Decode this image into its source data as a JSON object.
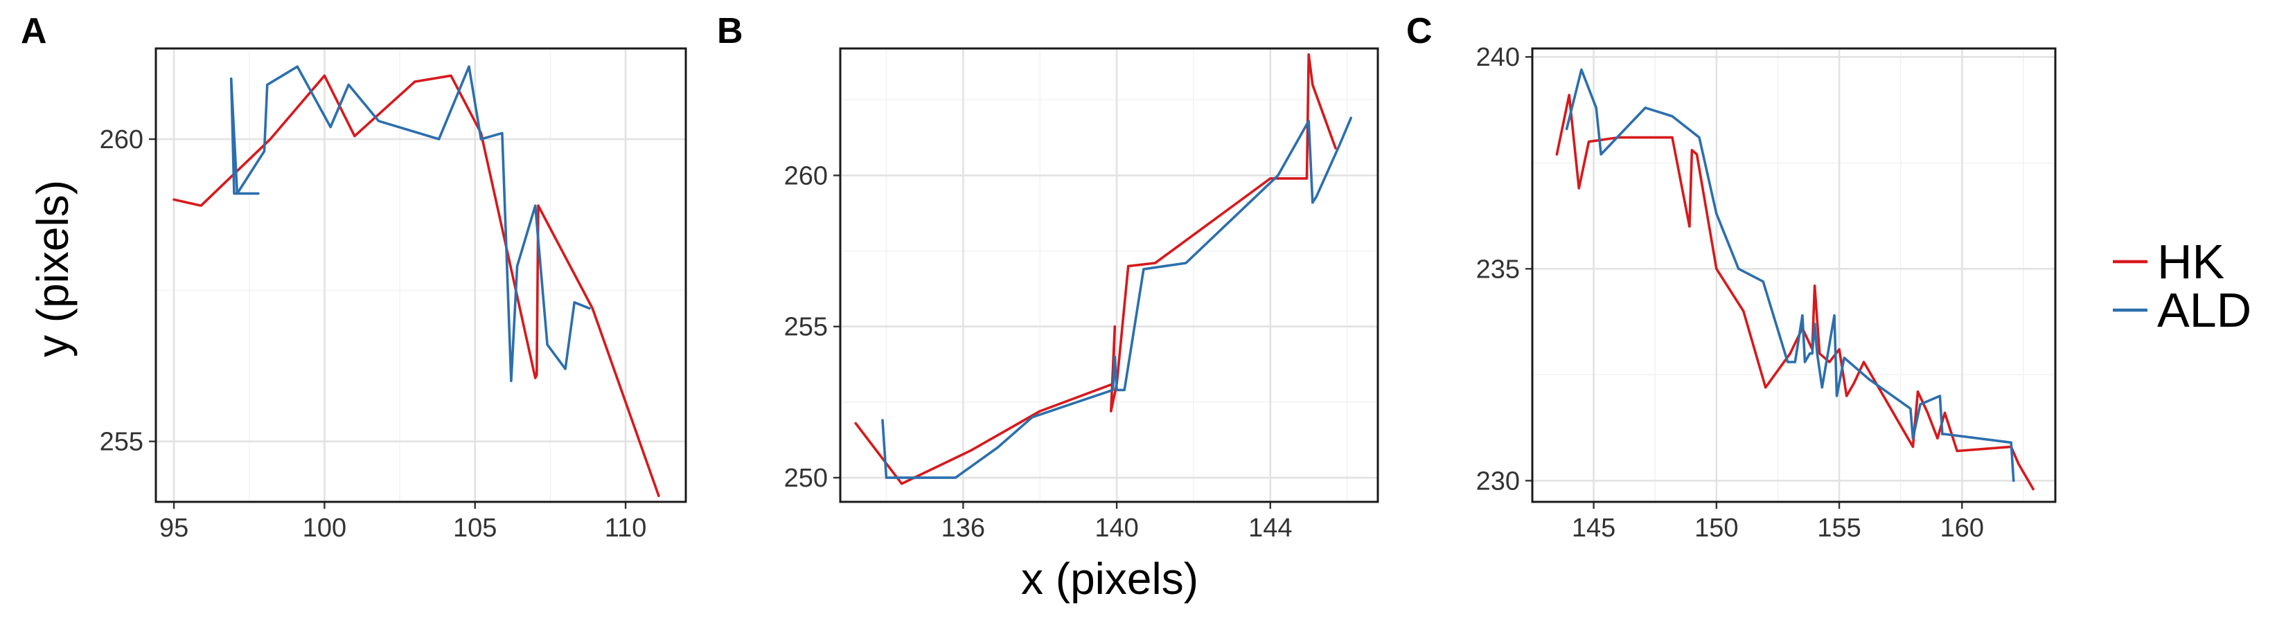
{
  "chart_data": [
    {
      "panel": "A",
      "type": "line",
      "xlim": [
        94.4,
        112.0
      ],
      "ylim": [
        254.0,
        261.5
      ],
      "xticks": [
        95,
        100,
        105,
        110
      ],
      "yticks": [
        255,
        260
      ],
      "series": [
        {
          "name": "HK",
          "x": [
            95.0,
            95.9,
            98.2,
            100.0,
            101.0,
            103.0,
            104.2,
            105.2,
            107.0,
            107.05,
            107.1,
            108.9,
            111.1
          ],
          "y": [
            259.0,
            258.9,
            260.0,
            261.05,
            260.05,
            260.95,
            261.05,
            260.1,
            256.05,
            256.1,
            258.9,
            257.2,
            254.1
          ]
        },
        {
          "name": "ALD",
          "x": [
            97.0,
            97.8,
            97.0,
            96.9,
            97.1,
            98.0,
            98.1,
            99.1,
            100.2,
            100.8,
            101.8,
            103.8,
            104.8,
            105.2,
            105.9,
            106.2,
            106.4,
            107.0,
            107.4,
            108.0,
            108.3,
            108.8
          ],
          "y": [
            259.1,
            259.1,
            259.1,
            261.0,
            259.1,
            259.8,
            260.9,
            261.2,
            260.2,
            260.9,
            260.3,
            260.0,
            261.2,
            260.0,
            260.1,
            256.0,
            257.9,
            258.9,
            256.6,
            256.2,
            257.3,
            257.2
          ]
        }
      ]
    },
    {
      "panel": "B",
      "type": "line",
      "xlim": [
        132.8,
        146.8
      ],
      "ylim": [
        249.2,
        264.2
      ],
      "xticks": [
        136,
        140,
        144
      ],
      "yticks": [
        250,
        255,
        260
      ],
      "series": [
        {
          "name": "HK",
          "x": [
            133.2,
            134.4,
            136.2,
            138.0,
            139.9,
            139.95,
            139.85,
            140.0,
            140.3,
            141.0,
            144.0,
            144.95,
            145.0,
            145.1,
            145.7
          ],
          "y": [
            251.8,
            249.8,
            250.9,
            252.2,
            253.1,
            255.0,
            252.2,
            253.1,
            257.0,
            257.1,
            259.9,
            259.9,
            264.0,
            263.0,
            260.9
          ]
        },
        {
          "name": "ALD",
          "x": [
            133.9,
            134.0,
            135.8,
            136.9,
            137.8,
            139.9,
            139.95,
            140.0,
            140.2,
            140.7,
            141.8,
            144.2,
            145.0,
            145.1,
            145.2,
            145.8,
            146.1
          ],
          "y": [
            251.9,
            250.0,
            250.0,
            251.0,
            252.0,
            252.9,
            254.0,
            252.9,
            252.9,
            256.9,
            257.1,
            260.0,
            261.8,
            259.1,
            259.3,
            261.0,
            261.9
          ]
        }
      ]
    },
    {
      "panel": "C",
      "type": "line",
      "xlim": [
        142.5,
        163.8
      ],
      "ylim": [
        229.5,
        240.2
      ],
      "xticks": [
        145,
        150,
        155,
        160
      ],
      "yticks": [
        230,
        235,
        240
      ],
      "series": [
        {
          "name": "HK",
          "x": [
            143.5,
            144.0,
            144.4,
            144.8,
            146.0,
            148.2,
            148.9,
            149.0,
            149.2,
            150.0,
            151.1,
            152.0,
            153.0,
            153.5,
            153.9,
            154.0,
            154.2,
            154.6,
            155.0,
            155.3,
            155.6,
            156.0,
            157.0,
            157.8,
            158.0,
            158.2,
            158.6,
            159.0,
            159.3,
            159.8,
            162.0,
            162.3,
            162.9
          ],
          "y": [
            237.7,
            239.1,
            236.9,
            238.0,
            238.1,
            238.1,
            236.0,
            237.8,
            237.7,
            235.0,
            234.0,
            232.2,
            233.0,
            233.6,
            233.1,
            234.6,
            233.0,
            232.8,
            233.1,
            232.0,
            232.3,
            232.8,
            231.8,
            231.0,
            230.8,
            232.1,
            231.6,
            231.0,
            231.6,
            230.7,
            230.8,
            230.4,
            229.8
          ]
        },
        {
          "name": "ALD",
          "x": [
            143.9,
            144.5,
            145.1,
            145.3,
            147.1,
            148.2,
            149.3,
            150.0,
            150.9,
            151.9,
            152.9,
            153.2,
            153.5,
            153.6,
            153.8,
            153.9,
            154.0,
            154.1,
            154.3,
            154.8,
            154.9,
            155.2,
            156.2,
            157.9,
            158.0,
            158.3,
            159.1,
            159.2,
            159.3,
            162.0,
            162.1
          ],
          "y": [
            238.3,
            239.7,
            238.8,
            237.7,
            238.8,
            238.6,
            238.1,
            236.3,
            235.0,
            234.7,
            232.8,
            232.8,
            233.9,
            232.8,
            233.0,
            233.0,
            233.7,
            233.0,
            232.2,
            233.9,
            232.0,
            232.9,
            232.4,
            231.7,
            231.0,
            231.8,
            232.0,
            231.1,
            231.1,
            230.9,
            230.0
          ]
        }
      ]
    }
  ],
  "panel_labels": [
    "A",
    "B",
    "C"
  ],
  "axis_titles": {
    "x": "x (pixels)",
    "y": "y (pixels)"
  },
  "legend": {
    "position": "right",
    "items": [
      {
        "label": "HK",
        "color": "#d7191c"
      },
      {
        "label": "ALD",
        "color": "#2c6fad"
      }
    ]
  },
  "colors": {
    "HK": "#d7191c",
    "ALD": "#2c6fad"
  }
}
